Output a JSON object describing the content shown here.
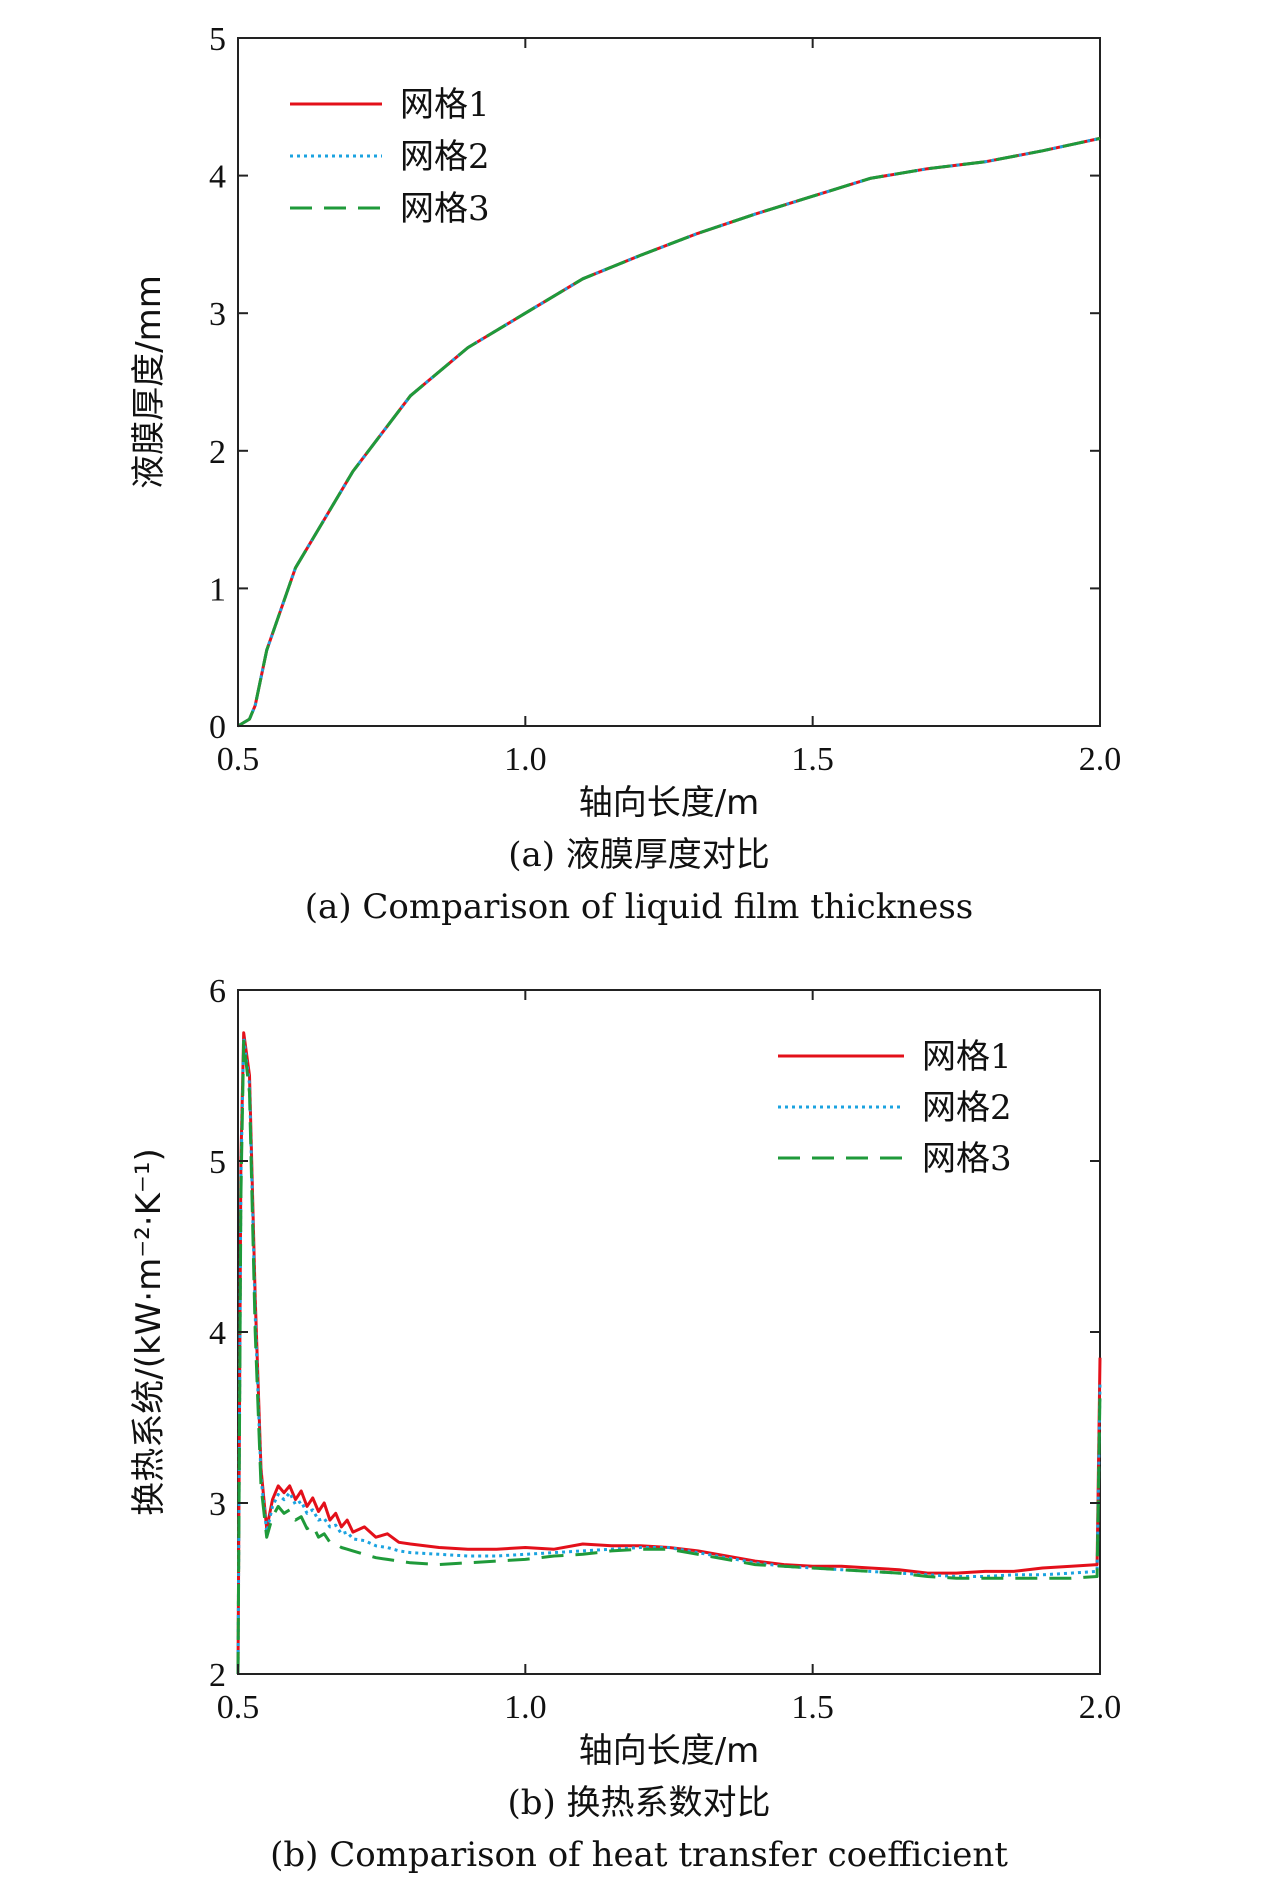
{
  "chart_data": [
    {
      "type": "line",
      "xlabel": "轴向长度/m",
      "ylabel": "液膜厚度/mm",
      "caption_cn": "(a) 液膜厚度对比",
      "caption_en": "(a) Comparison of liquid film thickness",
      "xlim": [
        0.5,
        2.0
      ],
      "ylim": [
        0,
        5
      ],
      "xticks": [
        "0.5",
        "1.0",
        "1.5",
        "2.0"
      ],
      "yticks": [
        "0",
        "1",
        "2",
        "3",
        "4",
        "5"
      ],
      "legend_position": "top-left",
      "grid": false,
      "series": [
        {
          "name": "网格1",
          "color": "#e3101a",
          "dash": "solid",
          "x": [
            0.5,
            0.52,
            0.53,
            0.55,
            0.6,
            0.65,
            0.7,
            0.8,
            0.9,
            1.0,
            1.1,
            1.2,
            1.3,
            1.4,
            1.5,
            1.6,
            1.7,
            1.8,
            1.9,
            2.0
          ],
          "y": [
            0,
            0.05,
            0.15,
            0.55,
            1.15,
            1.5,
            1.85,
            2.4,
            2.75,
            3.0,
            3.25,
            3.42,
            3.58,
            3.72,
            3.85,
            3.98,
            4.05,
            4.1,
            4.18,
            4.27
          ]
        },
        {
          "name": "网格2",
          "color": "#1ba3e0",
          "dash": "dotted",
          "x": [
            0.5,
            0.52,
            0.53,
            0.55,
            0.6,
            0.65,
            0.7,
            0.8,
            0.9,
            1.0,
            1.1,
            1.2,
            1.3,
            1.4,
            1.5,
            1.6,
            1.7,
            1.8,
            1.9,
            2.0
          ],
          "y": [
            0,
            0.05,
            0.15,
            0.55,
            1.15,
            1.5,
            1.85,
            2.4,
            2.75,
            3.0,
            3.25,
            3.42,
            3.58,
            3.72,
            3.85,
            3.98,
            4.05,
            4.1,
            4.18,
            4.27
          ]
        },
        {
          "name": "网格3",
          "color": "#1f9a3a",
          "dash": "dashed",
          "x": [
            0.5,
            0.52,
            0.53,
            0.55,
            0.6,
            0.65,
            0.7,
            0.8,
            0.9,
            1.0,
            1.1,
            1.2,
            1.3,
            1.4,
            1.5,
            1.6,
            1.7,
            1.8,
            1.9,
            2.0
          ],
          "y": [
            0,
            0.05,
            0.15,
            0.55,
            1.15,
            1.5,
            1.85,
            2.4,
            2.75,
            3.0,
            3.25,
            3.42,
            3.58,
            3.72,
            3.85,
            3.98,
            4.05,
            4.1,
            4.18,
            4.27
          ]
        }
      ]
    },
    {
      "type": "line",
      "xlabel": "轴向长度/m",
      "ylabel": "换热系统/(kW·m⁻²·K⁻¹)",
      "caption_cn": "(b) 换热系数对比",
      "caption_en": "(b) Comparison of heat transfer coefficient",
      "xlim": [
        0.5,
        2.0
      ],
      "ylim": [
        2,
        6
      ],
      "xticks": [
        "0.5",
        "1.0",
        "1.5",
        "2.0"
      ],
      "yticks": [
        "2",
        "3",
        "4",
        "5",
        "6"
      ],
      "legend_position": "top-right",
      "grid": false,
      "series": [
        {
          "name": "网格1",
          "color": "#e3101a",
          "dash": "solid",
          "x": [
            0.5,
            0.505,
            0.51,
            0.52,
            0.53,
            0.54,
            0.55,
            0.56,
            0.57,
            0.58,
            0.59,
            0.6,
            0.61,
            0.62,
            0.63,
            0.64,
            0.65,
            0.66,
            0.67,
            0.68,
            0.69,
            0.7,
            0.72,
            0.74,
            0.76,
            0.78,
            0.8,
            0.85,
            0.9,
            0.95,
            1.0,
            1.05,
            1.1,
            1.15,
            1.2,
            1.25,
            1.3,
            1.35,
            1.4,
            1.45,
            1.5,
            1.55,
            1.6,
            1.65,
            1.7,
            1.75,
            1.8,
            1.85,
            1.9,
            1.95,
            1.995,
            2.0
          ],
          "y": [
            2.0,
            5.0,
            5.75,
            5.5,
            4.2,
            3.2,
            2.85,
            3.02,
            3.1,
            3.06,
            3.1,
            3.02,
            3.07,
            2.98,
            3.03,
            2.95,
            3.0,
            2.9,
            2.94,
            2.86,
            2.9,
            2.83,
            2.86,
            2.8,
            2.82,
            2.77,
            2.76,
            2.74,
            2.73,
            2.73,
            2.74,
            2.73,
            2.76,
            2.75,
            2.75,
            2.74,
            2.72,
            2.69,
            2.66,
            2.64,
            2.63,
            2.63,
            2.62,
            2.61,
            2.59,
            2.59,
            2.6,
            2.6,
            2.62,
            2.63,
            2.64,
            3.85
          ]
        },
        {
          "name": "网格2",
          "color": "#1ba3e0",
          "dash": "dotted",
          "x": [
            0.5,
            0.505,
            0.51,
            0.52,
            0.53,
            0.54,
            0.55,
            0.56,
            0.57,
            0.58,
            0.59,
            0.6,
            0.61,
            0.62,
            0.63,
            0.64,
            0.65,
            0.66,
            0.67,
            0.68,
            0.69,
            0.7,
            0.72,
            0.74,
            0.76,
            0.78,
            0.8,
            0.85,
            0.9,
            0.95,
            1.0,
            1.05,
            1.1,
            1.15,
            1.2,
            1.25,
            1.3,
            1.35,
            1.4,
            1.45,
            1.5,
            1.55,
            1.6,
            1.65,
            1.7,
            1.75,
            1.8,
            1.85,
            1.9,
            1.95,
            1.995,
            2.0
          ],
          "y": [
            2.0,
            4.9,
            5.72,
            5.45,
            4.1,
            3.15,
            2.83,
            2.98,
            3.05,
            3.02,
            3.06,
            2.99,
            3.01,
            2.94,
            2.96,
            2.9,
            2.91,
            2.86,
            2.87,
            2.82,
            2.83,
            2.79,
            2.78,
            2.75,
            2.74,
            2.72,
            2.71,
            2.7,
            2.69,
            2.69,
            2.7,
            2.71,
            2.72,
            2.73,
            2.74,
            2.74,
            2.71,
            2.68,
            2.65,
            2.63,
            2.62,
            2.61,
            2.6,
            2.59,
            2.58,
            2.57,
            2.57,
            2.58,
            2.58,
            2.59,
            2.6,
            3.7
          ]
        },
        {
          "name": "网格3",
          "color": "#1f9a3a",
          "dash": "dashed",
          "x": [
            0.5,
            0.505,
            0.51,
            0.52,
            0.53,
            0.54,
            0.55,
            0.56,
            0.57,
            0.58,
            0.59,
            0.6,
            0.61,
            0.62,
            0.63,
            0.64,
            0.65,
            0.66,
            0.67,
            0.68,
            0.69,
            0.7,
            0.72,
            0.74,
            0.76,
            0.78,
            0.8,
            0.85,
            0.9,
            0.95,
            1.0,
            1.05,
            1.1,
            1.15,
            1.2,
            1.25,
            1.3,
            1.35,
            1.4,
            1.45,
            1.5,
            1.55,
            1.6,
            1.65,
            1.7,
            1.75,
            1.8,
            1.85,
            1.9,
            1.95,
            1.995,
            2.0
          ],
          "y": [
            2.0,
            4.8,
            5.7,
            5.4,
            4.0,
            3.1,
            2.8,
            2.92,
            2.98,
            2.94,
            2.96,
            2.9,
            2.92,
            2.85,
            2.87,
            2.8,
            2.82,
            2.77,
            2.76,
            2.74,
            2.73,
            2.72,
            2.7,
            2.68,
            2.67,
            2.66,
            2.65,
            2.64,
            2.65,
            2.66,
            2.67,
            2.69,
            2.7,
            2.72,
            2.73,
            2.73,
            2.7,
            2.67,
            2.64,
            2.63,
            2.62,
            2.61,
            2.6,
            2.59,
            2.57,
            2.56,
            2.56,
            2.56,
            2.56,
            2.56,
            2.57,
            3.65
          ]
        }
      ]
    }
  ]
}
